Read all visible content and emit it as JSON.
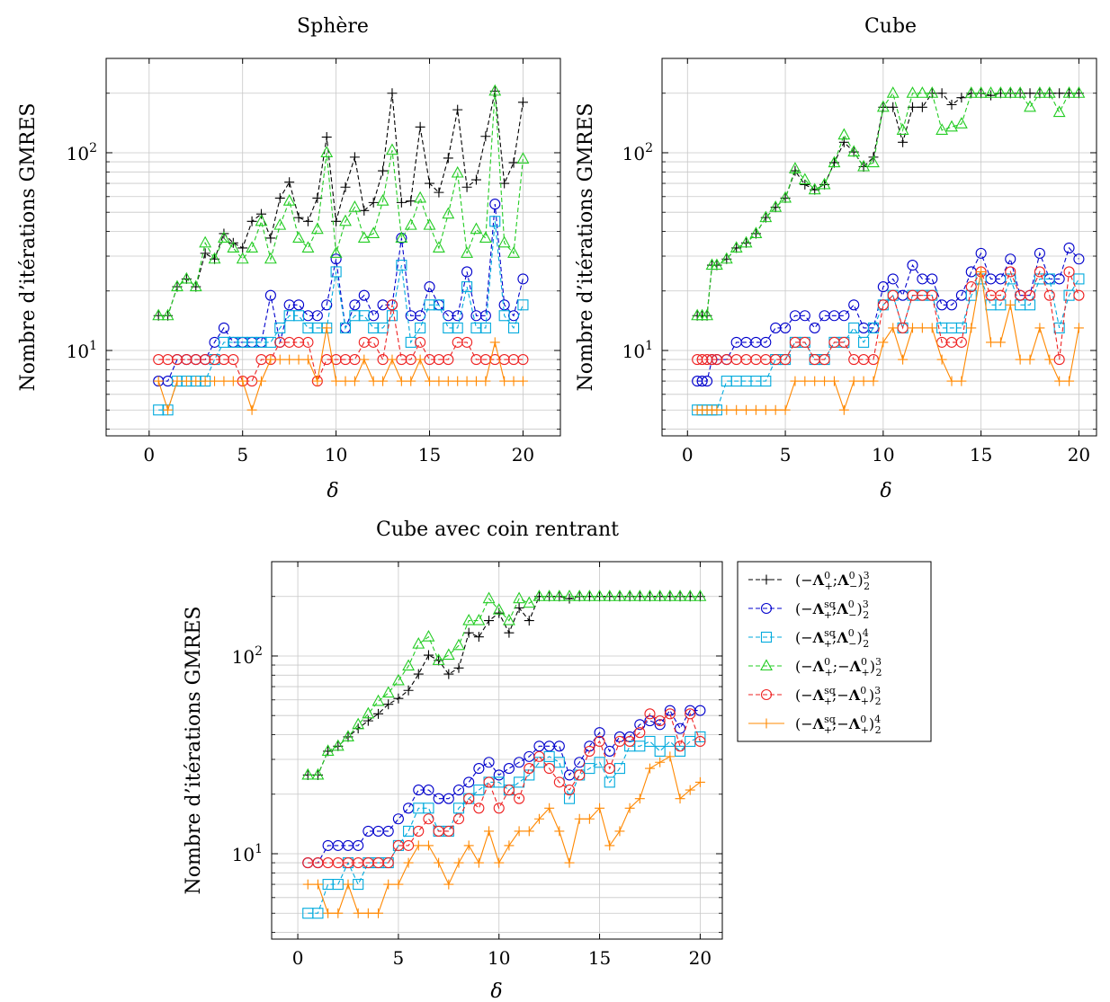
{
  "legend": {
    "entries": [
      {
        "id": "s1",
        "label": "(−Λ₊⁰;Λ₋⁰)₂³",
        "main": "(−",
        "a": "Λ",
        "a_sup": "0",
        "a_sub": "+",
        "mid": ";",
        "b_sign": "",
        "b": "Λ",
        "b_sup": "0",
        "b_sub": "−",
        "close": ")",
        "tail_sup": "3",
        "tail_sub": "2",
        "color": "#000000",
        "marker": "plus",
        "dash": true
      },
      {
        "id": "s2",
        "label": "(−Λ₊ˢᑫ;Λ₋⁰)₂³",
        "main": "(−",
        "a": "Λ",
        "a_sup": "sq",
        "a_sub": "+",
        "mid": ";",
        "b_sign": "",
        "b": "Λ",
        "b_sup": "0",
        "b_sub": "−",
        "close": ")",
        "tail_sup": "3",
        "tail_sub": "2",
        "color": "#0000cc",
        "marker": "circle",
        "dash": true
      },
      {
        "id": "s3",
        "label": "(−Λ₊ˢᑫ;Λ₋⁰)₂⁴",
        "main": "(−",
        "a": "Λ",
        "a_sup": "sq",
        "a_sub": "+",
        "mid": ";",
        "b_sign": "",
        "b": "Λ",
        "b_sup": "0",
        "b_sub": "−",
        "close": ")",
        "tail_sup": "4",
        "tail_sub": "2",
        "color": "#00aadd",
        "marker": "square",
        "dash": true
      },
      {
        "id": "s4",
        "label": "(−Λ₊⁰;−Λ₊⁰)₂³",
        "main": "(−",
        "a": "Λ",
        "a_sup": "0",
        "a_sub": "+",
        "mid": ";",
        "b_sign": "−",
        "b": "Λ",
        "b_sup": "0",
        "b_sub": "+",
        "close": ")",
        "tail_sup": "3",
        "tail_sub": "2",
        "color": "#22cc22",
        "marker": "triangle",
        "dash": true
      },
      {
        "id": "s5",
        "label": "(−Λ₊ˢᑫ;−Λ₊⁰)₂³",
        "main": "(−",
        "a": "Λ",
        "a_sup": "sq",
        "a_sub": "+",
        "mid": ";",
        "b_sign": "−",
        "b": "Λ",
        "b_sup": "0",
        "b_sub": "+",
        "close": ")",
        "tail_sup": "3",
        "tail_sub": "2",
        "color": "#ee2222",
        "marker": "circle",
        "dash": true
      },
      {
        "id": "s6",
        "label": "(−Λ₊ˢᑫ;−Λ₊⁰)₂⁴",
        "main": "(−",
        "a": "Λ",
        "a_sup": "sq",
        "a_sub": "+",
        "mid": ";",
        "b_sign": "−",
        "b": "Λ",
        "b_sup": "0",
        "b_sub": "+",
        "close": ")",
        "tail_sup": "4",
        "tail_sub": "2",
        "color": "#ff8800",
        "marker": "plus",
        "dash": false
      }
    ]
  },
  "chart_data": [
    {
      "id": "sphere",
      "type": "line",
      "title": "Sphère",
      "xlabel": "δ",
      "ylabel": "Nombre d’itérations GMRES",
      "yscale": "log",
      "xlim": [
        -2.3,
        22
      ],
      "ylim": [
        3.7,
        300
      ],
      "xticks": [
        0,
        5,
        10,
        15,
        20
      ],
      "yticks": [
        {
          "value": 10,
          "base": "10",
          "exp": "1"
        },
        {
          "value": 100,
          "base": "10",
          "exp": "2"
        }
      ],
      "grid": true,
      "x": [
        0.5,
        1,
        1.5,
        2,
        2.5,
        3,
        3.5,
        4,
        4.5,
        5,
        5.5,
        6,
        6.5,
        7,
        7.5,
        8,
        8.5,
        9,
        9.5,
        10,
        10.5,
        11,
        11.5,
        12,
        12.5,
        13,
        13.5,
        14,
        14.5,
        15,
        15.5,
        16,
        16.5,
        17,
        17.5,
        18,
        18.5,
        19,
        19.5,
        20
      ],
      "series": [
        {
          "ref": "s1",
          "values": [
            15,
            15,
            21,
            23,
            21,
            31,
            29,
            39,
            35,
            33,
            45,
            49,
            37,
            59,
            71,
            47,
            45,
            59,
            120,
            45,
            67,
            95,
            51,
            56,
            81,
            200,
            56,
            57,
            135,
            70,
            63,
            94,
            165,
            67,
            73,
            121,
            205,
            70,
            89,
            180
          ]
        },
        {
          "ref": "s2",
          "values": [
            7,
            7,
            9,
            9,
            9,
            9,
            11,
            13,
            11,
            11,
            11,
            11,
            19,
            11,
            17,
            17,
            15,
            15,
            17,
            29,
            13,
            17,
            19,
            15,
            17,
            17,
            37,
            15,
            15,
            21,
            17,
            15,
            15,
            25,
            15,
            15,
            55,
            17,
            15,
            23
          ]
        },
        {
          "ref": "s3",
          "values": [
            5,
            5,
            7,
            7,
            7,
            7,
            9,
            11,
            11,
            11,
            11,
            11,
            11,
            13,
            15,
            15,
            13,
            13,
            13,
            25,
            13,
            15,
            15,
            13,
            13,
            15,
            27,
            11,
            13,
            17,
            17,
            13,
            13,
            21,
            13,
            13,
            45,
            15,
            13,
            17
          ]
        },
        {
          "ref": "s4",
          "values": [
            15,
            15,
            21,
            23,
            21,
            35,
            29,
            37,
            33,
            29,
            33,
            45,
            29,
            43,
            57,
            37,
            33,
            41,
            100,
            31,
            45,
            53,
            37,
            39,
            57,
            103,
            37,
            43,
            59,
            43,
            33,
            49,
            79,
            31,
            41,
            37,
            205,
            35,
            31,
            93
          ]
        },
        {
          "ref": "s5",
          "values": [
            9,
            9,
            9,
            9,
            9,
            9,
            9,
            9,
            9,
            7,
            7,
            9,
            9,
            11,
            11,
            11,
            11,
            7,
            9,
            9,
            9,
            9,
            11,
            11,
            9,
            17,
            9,
            9,
            11,
            9,
            9,
            9,
            11,
            11,
            9,
            9,
            9,
            9,
            9,
            9
          ]
        },
        {
          "ref": "s6",
          "values": [
            7,
            5,
            7,
            7,
            7,
            7,
            7,
            7,
            7,
            7,
            5,
            7,
            9,
            9,
            9,
            9,
            9,
            7,
            13,
            7,
            7,
            7,
            9,
            7,
            7,
            9,
            7,
            7,
            9,
            7,
            7,
            7,
            7,
            7,
            7,
            7,
            11,
            7,
            7,
            7
          ]
        }
      ]
    },
    {
      "id": "cube",
      "type": "line",
      "title": "Cube",
      "xlabel": "δ",
      "ylabel": "Nombre d’itérations GMRES",
      "yscale": "log",
      "xlim": [
        -1.3,
        20.9
      ],
      "ylim": [
        3.7,
        300
      ],
      "xticks": [
        0,
        5,
        10,
        15,
        20
      ],
      "yticks": [
        {
          "value": 10,
          "base": "10",
          "exp": "1"
        },
        {
          "value": 100,
          "base": "10",
          "exp": "2"
        }
      ],
      "grid": true,
      "x": [
        0.5,
        0.75,
        1,
        1.25,
        1.5,
        2,
        2.5,
        3,
        3.5,
        4,
        4.5,
        5,
        5.5,
        6,
        6.5,
        7,
        7.5,
        8,
        8.5,
        9,
        9.5,
        10,
        10.5,
        11,
        11.5,
        12,
        12.5,
        13,
        13.5,
        14,
        14.5,
        15,
        15.5,
        16,
        16.5,
        17,
        17.5,
        18,
        18.5,
        19,
        19.5,
        20
      ],
      "series": [
        {
          "ref": "s1",
          "values": [
            15,
            15,
            15,
            27,
            27,
            29,
            33,
            35,
            39,
            47,
            53,
            59,
            81,
            69,
            65,
            69,
            89,
            113,
            101,
            85,
            95,
            170,
            170,
            113,
            170,
            170,
            200,
            200,
            175,
            190,
            200,
            200,
            195,
            200,
            200,
            200,
            200,
            200,
            200,
            200,
            200,
            200
          ]
        },
        {
          "ref": "s2",
          "values": [
            7,
            7,
            7,
            9,
            9,
            9,
            11,
            11,
            11,
            11,
            13,
            13,
            15,
            15,
            13,
            15,
            15,
            15,
            17,
            13,
            13,
            21,
            23,
            19,
            27,
            23,
            23,
            17,
            17,
            19,
            25,
            31,
            23,
            23,
            29,
            19,
            19,
            31,
            23,
            23,
            33,
            29
          ]
        },
        {
          "ref": "s3",
          "values": [
            5,
            5,
            5,
            5,
            5,
            7,
            7,
            7,
            7,
            7,
            9,
            9,
            11,
            11,
            9,
            9,
            11,
            11,
            13,
            11,
            13,
            17,
            19,
            13,
            19,
            19,
            19,
            13,
            13,
            13,
            19,
            23,
            17,
            17,
            23,
            17,
            17,
            23,
            23,
            13,
            19,
            23
          ]
        },
        {
          "ref": "s4",
          "values": [
            15,
            15,
            15,
            27,
            27,
            29,
            33,
            35,
            39,
            47,
            53,
            59,
            83,
            73,
            65,
            69,
            89,
            123,
            101,
            85,
            89,
            170,
            200,
            130,
            200,
            200,
            200,
            130,
            135,
            140,
            200,
            200,
            200,
            200,
            200,
            200,
            170,
            200,
            200,
            160,
            200,
            200
          ]
        },
        {
          "ref": "s5",
          "values": [
            9,
            9,
            9,
            9,
            9,
            9,
            9,
            9,
            9,
            9,
            9,
            9,
            11,
            11,
            9,
            9,
            11,
            11,
            9,
            9,
            9,
            17,
            19,
            13,
            19,
            19,
            19,
            11,
            11,
            11,
            21,
            25,
            19,
            19,
            25,
            19,
            19,
            25,
            19,
            9,
            25,
            19
          ]
        },
        {
          "ref": "s6",
          "values": [
            5,
            5,
            5,
            5,
            5,
            5,
            5,
            5,
            5,
            5,
            5,
            5,
            7,
            7,
            7,
            7,
            7,
            5,
            7,
            7,
            7,
            11,
            13,
            9,
            13,
            13,
            13,
            9,
            7,
            7,
            13,
            25,
            11,
            11,
            17,
            9,
            9,
            13,
            9,
            7,
            7,
            13
          ]
        }
      ]
    },
    {
      "id": "cube-coin",
      "type": "line",
      "title": "Cube avec coin rentrant",
      "xlabel": "δ",
      "ylabel": "Nombre d’itérations GMRES",
      "yscale": "log",
      "xlim": [
        -1.3,
        21.1
      ],
      "ylim": [
        3.7,
        300
      ],
      "xticks": [
        0,
        5,
        10,
        15,
        20
      ],
      "yticks": [
        {
          "value": 10,
          "base": "10",
          "exp": "1"
        },
        {
          "value": 100,
          "base": "10",
          "exp": "2"
        }
      ],
      "grid": true,
      "x": [
        0.5,
        1,
        1.5,
        2,
        2.5,
        3,
        3.5,
        4,
        4.5,
        5,
        5.5,
        6,
        6.5,
        7,
        7.5,
        8,
        8.5,
        9,
        9.5,
        10,
        10.5,
        11,
        11.5,
        12,
        12.5,
        13,
        13.5,
        14,
        14.5,
        15,
        15.5,
        16,
        16.5,
        17,
        17.5,
        18,
        18.5,
        19,
        19.5,
        20
      ],
      "series": [
        {
          "ref": "s1",
          "values": [
            25,
            25,
            33,
            35,
            39,
            43,
            47,
            51,
            57,
            61,
            67,
            81,
            101,
            95,
            81,
            87,
            131,
            125,
            151,
            165,
            131,
            175,
            151,
            200,
            200,
            200,
            195,
            200,
            200,
            200,
            200,
            200,
            200,
            200,
            200,
            200,
            200,
            200,
            200,
            200
          ]
        },
        {
          "ref": "s2",
          "values": [
            9,
            9,
            11,
            11,
            11,
            11,
            13,
            13,
            13,
            15,
            17,
            21,
            21,
            19,
            19,
            21,
            23,
            27,
            29,
            25,
            27,
            29,
            31,
            35,
            35,
            35,
            25,
            29,
            35,
            41,
            33,
            39,
            39,
            45,
            47,
            45,
            53,
            43,
            53,
            53
          ]
        },
        {
          "ref": "s3",
          "values": [
            5,
            5,
            7,
            7,
            9,
            7,
            9,
            9,
            9,
            11,
            13,
            17,
            17,
            13,
            13,
            17,
            19,
            21,
            23,
            23,
            21,
            23,
            25,
            29,
            31,
            29,
            19,
            25,
            27,
            29,
            23,
            27,
            35,
            35,
            37,
            33,
            37,
            33,
            37,
            39
          ]
        },
        {
          "ref": "s4",
          "values": [
            25,
            25,
            33,
            35,
            39,
            45,
            51,
            59,
            65,
            75,
            89,
            115,
            125,
            95,
            101,
            113,
            151,
            151,
            195,
            171,
            151,
            195,
            185,
            200,
            200,
            200,
            200,
            200,
            200,
            200,
            200,
            200,
            200,
            200,
            200,
            200,
            200,
            200,
            200,
            200
          ]
        },
        {
          "ref": "s5",
          "values": [
            9,
            9,
            9,
            9,
            9,
            9,
            9,
            9,
            9,
            11,
            11,
            13,
            15,
            13,
            13,
            15,
            19,
            17,
            23,
            17,
            21,
            19,
            27,
            31,
            27,
            23,
            21,
            25,
            33,
            37,
            27,
            37,
            37,
            41,
            51,
            47,
            51,
            35,
            51,
            37
          ]
        },
        {
          "ref": "s6",
          "values": [
            7,
            7,
            5,
            5,
            7,
            5,
            5,
            5,
            7,
            7,
            9,
            11,
            11,
            9,
            7,
            9,
            11,
            9,
            13,
            9,
            11,
            13,
            13,
            15,
            17,
            13,
            9,
            15,
            15,
            17,
            11,
            13,
            17,
            19,
            27,
            29,
            31,
            19,
            21,
            23
          ]
        }
      ]
    }
  ]
}
